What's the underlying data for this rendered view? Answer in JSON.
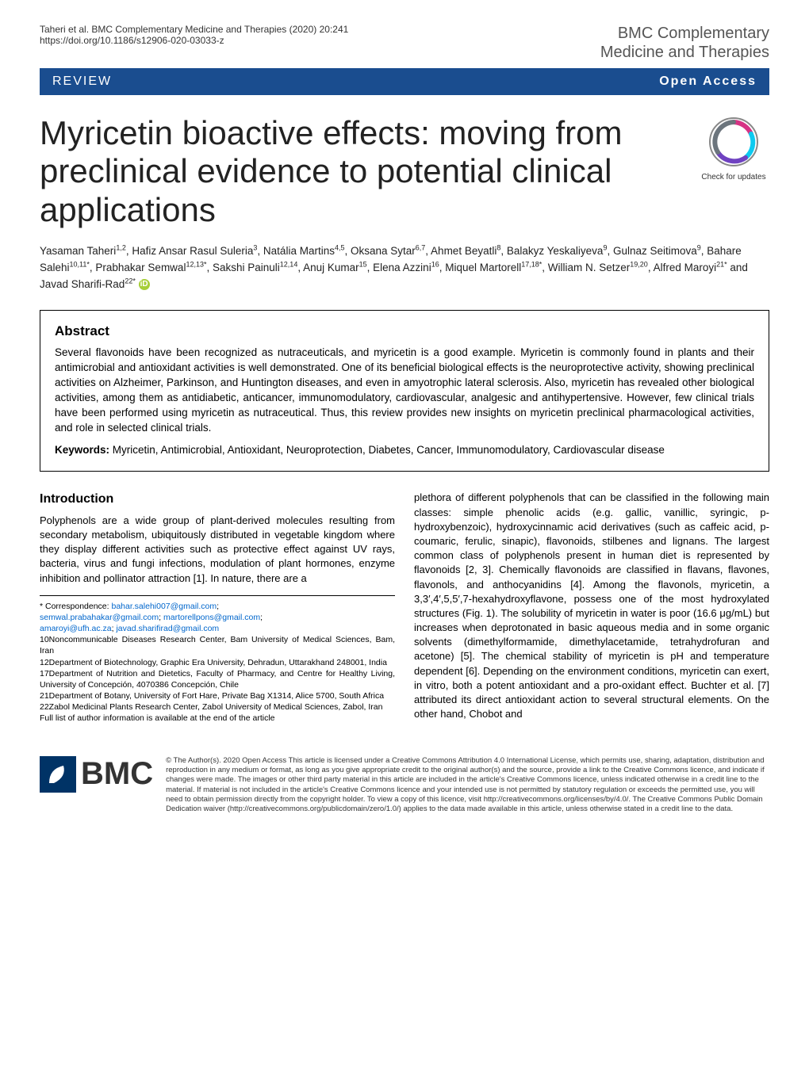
{
  "header": {
    "citation": "Taheri et al. BMC Complementary Medicine and Therapies          (2020) 20:241",
    "doi": "https://doi.org/10.1186/s12906-020-03033-z",
    "journal_line1": "BMC Complementary",
    "journal_line2": "Medicine and Therapies",
    "journal_color": "#555555"
  },
  "banner": {
    "type_label": "REVIEW",
    "open_access_label": "Open Access",
    "bg_color": "#1a4d8f",
    "text_color": "#ffffff"
  },
  "title": "Myricetin bioactive effects: moving from preclinical evidence to potential clinical applications",
  "check_updates_label": "Check for updates",
  "authors_html": "Yasaman Taheri<sup>1,2</sup>, Hafiz Ansar Rasul Suleria<sup>3</sup>, Natália Martins<sup>4,5</sup>, Oksana Sytar<sup>6,7</sup>, Ahmet Beyatli<sup>8</sup>, Balakyz Yeskaliyeva<sup>9</sup>, Gulnaz Seitimova<sup>9</sup>, Bahare Salehi<sup>10,11*</sup>, Prabhakar Semwal<sup>12,13*</sup>, Sakshi Painuli<sup>12,14</sup>, Anuj Kumar<sup>15</sup>, Elena Azzini<sup>16</sup>, Miquel Martorell<sup>17,18*</sup>, William N. Setzer<sup>19,20</sup>, Alfred Maroyi<sup>21*</sup> and Javad Sharifi-Rad<sup>22*</sup>",
  "abstract": {
    "heading": "Abstract",
    "text": "Several flavonoids have been recognized as nutraceuticals, and myricetin is a good example. Myricetin is commonly found in plants and their antimicrobial and antioxidant activities is well demonstrated. One of its beneficial biological effects is the neuroprotective activity, showing preclinical activities on Alzheimer, Parkinson, and Huntington diseases, and even in amyotrophic lateral sclerosis. Also, myricetin has revealed other biological activities, among them as antidiabetic, anticancer, immunomodulatory, cardiovascular, analgesic and antihypertensive. However, few clinical trials have been performed using myricetin as nutraceutical. Thus, this review provides new insights on myricetin preclinical pharmacological activities, and role in selected clinical trials.",
    "keywords_label": "Keywords:",
    "keywords": "Myricetin, Antimicrobial, Antioxidant, Neuroprotection, Diabetes, Cancer, Immunomodulatory, Cardiovascular disease"
  },
  "intro": {
    "heading": "Introduction",
    "left_text": "Polyphenols are a wide group of plant-derived molecules resulting from secondary metabolism, ubiquitously distributed in vegetable kingdom where they display different activities such as protective effect against UV rays, bacteria, virus and fungi infections, modulation of plant hormones, enzyme inhibition and pollinator attraction [1]. In nature, there are a",
    "right_text": "plethora of different polyphenols that can be classified in the following main classes: simple phenolic acids (e.g. gallic, vanillic, syringic, p-hydroxybenzoic), hydroxycinnamic acid derivatives (such as caffeic acid, p-coumaric, ferulic, sinapic), flavonoids, stilbenes and lignans. The largest common class of polyphenols present in human diet is represented by flavonoids [2, 3]. Chemically flavonoids are classified in flavans, flavones, flavonols, and anthocyanidins [4]. Among the flavonols, myricetin, a 3,3′,4′,5,5′,7-hexahydroxyflavone, possess one of the most hydroxylated structures (Fig. 1). The solubility of myricetin in water is poor (16.6 μg/mL) but increases when deprotonated in basic aqueous media and in some organic solvents (dimethylformamide, dimethylacetamide, tetrahydrofuran and acetone) [5]. The chemical stability of myricetin is pH and temperature dependent [6]. Depending on the environment conditions, myricetin can exert, in vitro, both a potent antioxidant and a pro-oxidant effect. Buchter et al. [7] attributed its direct antioxidant action to several structural elements. On the other hand, Chobot and"
  },
  "correspondence": {
    "star": "* Correspondence:",
    "emails": [
      "bahar.salehi007@gmail.com",
      "semwal.prabahakar@gmail.com",
      "martorellpons@gmail.com",
      "amaroyi@ufh.ac.za",
      "javad.sharifirad@gmail.com"
    ],
    "affiliations": [
      "10Noncommunicable Diseases Research Center, Bam University of Medical Sciences, Bam, Iran",
      "12Department of Biotechnology, Graphic Era University, Dehradun, Uttarakhand 248001, India",
      "17Department of Nutrition and Dietetics, Faculty of Pharmacy, and Centre for Healthy Living, University of Concepción, 4070386 Concepción, Chile",
      "21Department of Botany, University of Fort Hare, Private Bag X1314, Alice 5700, South Africa",
      "22Zabol Medicinal Plants Research Center, Zabol University of Medical Sciences, Zabol, Iran"
    ],
    "full_list_note": "Full list of author information is available at the end of the article"
  },
  "footer": {
    "bmc_label": "BMC",
    "license_text": "© The Author(s). 2020 Open Access This article is licensed under a Creative Commons Attribution 4.0 International License, which permits use, sharing, adaptation, distribution and reproduction in any medium or format, as long as you give appropriate credit to the original author(s) and the source, provide a link to the Creative Commons licence, and indicate if changes were made. The images or other third party material in this article are included in the article's Creative Commons licence, unless indicated otherwise in a credit line to the material. If material is not included in the article's Creative Commons licence and your intended use is not permitted by statutory regulation or exceeds the permitted use, you will need to obtain permission directly from the copyright holder. To view a copy of this licence, visit http://creativecommons.org/licenses/by/4.0/. The Creative Commons Public Domain Dedication waiver (http://creativecommons.org/publicdomain/zero/1.0/) applies to the data made available in this article, unless otherwise stated in a credit line to the data.",
    "bmc_logo_bg": "#003366"
  },
  "colors": {
    "link_color": "#0066cc",
    "orcid_bg": "#a6ce39"
  }
}
